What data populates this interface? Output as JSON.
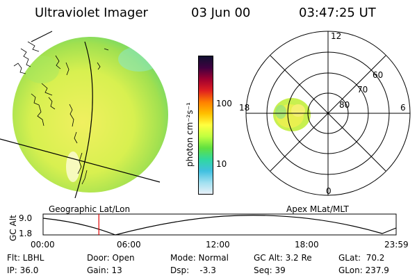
{
  "header": {
    "title": "Ultraviolet Imager",
    "date": "03 Jun 00",
    "time": "03:47:25 UT"
  },
  "left_panel": {
    "caption": "Geographic Lat/Lon"
  },
  "right_panel": {
    "caption": "Apex MLat/MLT",
    "mlt_labels": [
      "12",
      "18",
      "6",
      "0"
    ],
    "mlat_labels": [
      "60",
      "70",
      "80"
    ]
  },
  "colorbar": {
    "unit_label": "photon cm⁻²s⁻¹",
    "ticks": [
      "100",
      "10"
    ],
    "colors": [
      "#101030",
      "#400040",
      "#a00030",
      "#e02020",
      "#ff8000",
      "#ffc000",
      "#ffff40",
      "#c0ff40",
      "#60e040",
      "#30d8a0",
      "#40c0e0",
      "#a0e0f0",
      "#e8f0f8"
    ]
  },
  "altitude_plot": {
    "ylabel": "GC Alt",
    "y_ticks": [
      "9.0",
      "1.8"
    ],
    "x_ticks": [
      "00:00",
      "06:00",
      "12:00",
      "18:00",
      "23:59"
    ],
    "marker_time_hours": 3.79,
    "marker_color": "#e00000"
  },
  "info": {
    "flt": "Flt: LBHL",
    "ip": "IP: 36.0",
    "door": "Door: Open",
    "gain": "Gain: 13",
    "mode": "Mode: Normal",
    "dsp": "Dsp:    -3.3",
    "gc_alt": "GC Alt: 3.2 Re",
    "seq": "Seq: 39",
    "glat": "GLat:  70.2",
    "glon": "GLon: 237.9"
  }
}
